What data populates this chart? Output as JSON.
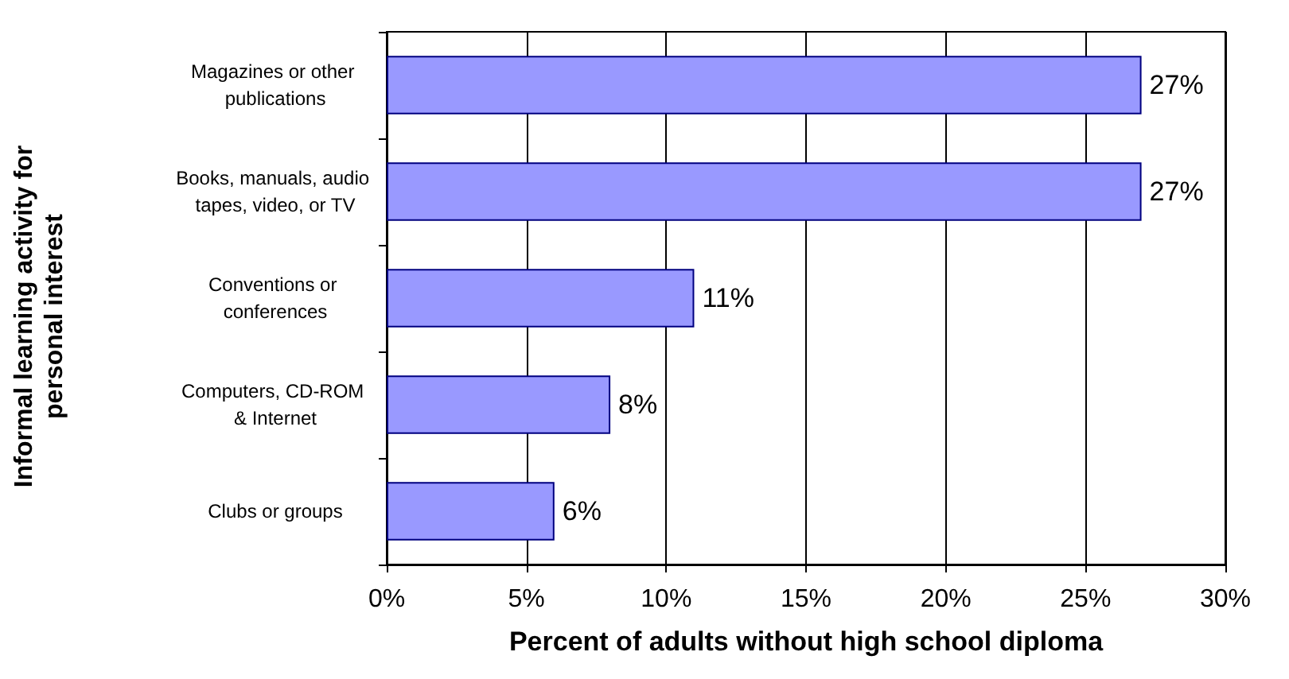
{
  "chart_data": {
    "type": "bar",
    "orientation": "horizontal",
    "xlabel": "Percent of adults without high school diploma",
    "ylabel": "Informal learning activity for personal interest",
    "categories": [
      "Magazines or other publications",
      "Books, manuals, audio tapes, video, or TV",
      "Conventions or conferences",
      "Computers, CD-ROM & Internet",
      "Clubs or groups"
    ],
    "values": [
      27,
      27,
      11,
      8,
      6
    ],
    "value_labels": [
      "27%",
      "27%",
      "11%",
      "8%",
      "6%"
    ],
    "color": "#9999ff",
    "xlim": [
      0,
      30
    ],
    "xticks": [
      {
        "value": 0,
        "label": "0%"
      },
      {
        "value": 5,
        "label": "5%"
      },
      {
        "value": 10,
        "label": "10%"
      },
      {
        "value": 15,
        "label": "15%"
      },
      {
        "value": 20,
        "label": "20%"
      },
      {
        "value": 25,
        "label": "25%"
      },
      {
        "value": 30,
        "label": "30%"
      }
    ],
    "grid": "x"
  }
}
